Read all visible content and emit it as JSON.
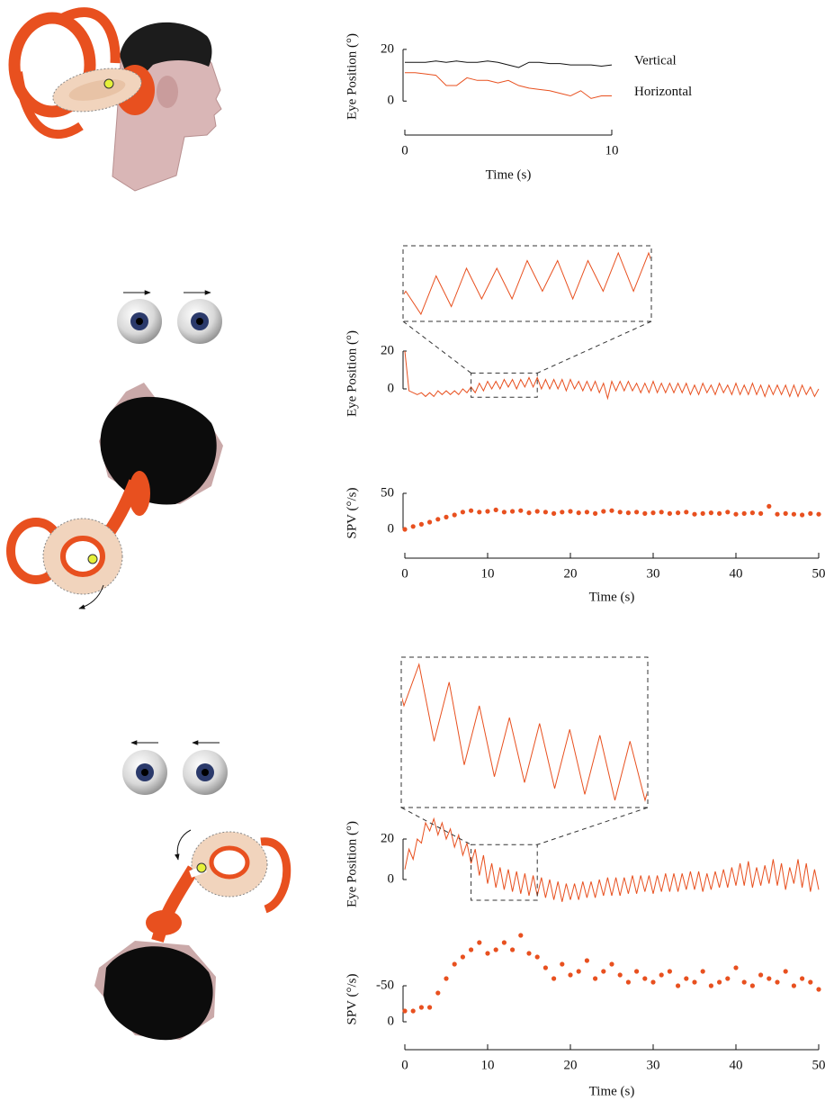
{
  "chart_data": [
    {
      "type": "line",
      "y_label": "Eye Position (°)",
      "x_label": "Time (s)",
      "xlim": [
        0,
        10
      ],
      "xticks": [
        0,
        10
      ],
      "ylim": [
        -2,
        21
      ],
      "yticks": [
        0,
        20
      ],
      "x": [
        0,
        0.5,
        1,
        1.5,
        2,
        2.5,
        3,
        3.5,
        4,
        4.5,
        5,
        5.5,
        6,
        6.5,
        7,
        7.5,
        8,
        8.5,
        9,
        9.5,
        10
      ],
      "series": [
        {
          "name": "Vertical",
          "color": "#111111",
          "values": [
            15,
            15,
            15,
            15.5,
            15,
            15.5,
            15,
            15,
            15.5,
            15,
            14,
            13,
            15,
            15,
            14.5,
            14.5,
            14,
            14,
            14,
            13.5,
            14
          ]
        },
        {
          "name": "Horizontal",
          "color": "#e8501f",
          "values": [
            11,
            11,
            10.5,
            10,
            6,
            6,
            9,
            8,
            8,
            7,
            8,
            6,
            5,
            4.5,
            4,
            3,
            2,
            4,
            1,
            2,
            2
          ]
        }
      ]
    },
    {
      "type": "line",
      "y_label": "Eye Position (°)",
      "xlim": [
        0,
        50
      ],
      "ylim": [
        -6,
        22
      ],
      "yticks": [
        0,
        20
      ],
      "zoom_xlim": [
        8,
        16
      ],
      "x": [
        0,
        0.5,
        1,
        1.5,
        2,
        2.5,
        3,
        3.5,
        4,
        4.5,
        5,
        5.5,
        6,
        6.5,
        7,
        7.5,
        8,
        8.5,
        9,
        9.5,
        10,
        10.5,
        11,
        11.5,
        12,
        12.5,
        13,
        13.5,
        14,
        14.5,
        15,
        15.5,
        16,
        16.5,
        17,
        17.5,
        18,
        18.5,
        19,
        19.5,
        20,
        20.5,
        21,
        21.5,
        22,
        22.5,
        23,
        23.5,
        24,
        24.5,
        25,
        25.5,
        26,
        26.5,
        27,
        27.5,
        28,
        28.5,
        29,
        29.5,
        30,
        30.5,
        31,
        31.5,
        32,
        32.5,
        33,
        33.5,
        34,
        34.5,
        35,
        35.5,
        36,
        36.5,
        37,
        37.5,
        38,
        38.5,
        39,
        39.5,
        40,
        40.5,
        41,
        41.5,
        42,
        42.5,
        43,
        43.5,
        44,
        44.5,
        45,
        45.5,
        46,
        46.5,
        47,
        47.5,
        48,
        48.5,
        49,
        49.5,
        50
      ],
      "series": [
        {
          "color": "#e8501f",
          "values": [
            20,
            -1,
            -2,
            -3,
            -2,
            -4,
            -2,
            -4,
            -1,
            -3,
            -1,
            -3,
            -1,
            -3,
            0,
            -2,
            1,
            -2,
            3,
            -1,
            4,
            0,
            4,
            0,
            5,
            1,
            5,
            0,
            5,
            1,
            6,
            1,
            6,
            0,
            5,
            0,
            5,
            0,
            5,
            -1,
            5,
            0,
            4,
            -1,
            4,
            -1,
            4,
            -2,
            3,
            -5,
            4,
            -1,
            4,
            -1,
            4,
            -1,
            3,
            -2,
            3,
            -2,
            4,
            -2,
            3,
            -2,
            3,
            -2,
            3,
            -2,
            3,
            -3,
            2,
            -3,
            3,
            -2,
            2,
            -3,
            3,
            -2,
            2,
            -3,
            3,
            -3,
            2,
            -3,
            3,
            -3,
            2,
            -4,
            2,
            -3,
            2,
            -3,
            2,
            -4,
            2,
            -4,
            2,
            -3,
            1,
            -4,
            0
          ]
        }
      ]
    },
    {
      "type": "scatter",
      "y_label": "SPV (°/s)",
      "x_label": "Time (s)",
      "xlim": [
        0,
        50
      ],
      "xticks": [
        0,
        10,
        20,
        30,
        40,
        50
      ],
      "ylim": [
        -3,
        50
      ],
      "yticks": [
        0,
        50
      ],
      "color": "#e8501f",
      "x": [
        0,
        1,
        2,
        3,
        4,
        5,
        6,
        7,
        8,
        9,
        10,
        11,
        12,
        13,
        14,
        15,
        16,
        17,
        18,
        19,
        20,
        21,
        22,
        23,
        24,
        25,
        26,
        27,
        28,
        29,
        30,
        31,
        32,
        33,
        34,
        35,
        36,
        37,
        38,
        39,
        40,
        41,
        42,
        43,
        44,
        45,
        46,
        47,
        48,
        49,
        50
      ],
      "values": [
        0,
        4,
        7,
        10,
        14,
        17,
        20,
        24,
        26,
        24,
        25,
        27,
        24,
        25,
        26,
        23,
        25,
        24,
        22,
        24,
        25,
        23,
        24,
        22,
        25,
        26,
        24,
        23,
        24,
        22,
        23,
        24,
        22,
        23,
        24,
        21,
        22,
        23,
        22,
        24,
        21,
        22,
        23,
        22,
        32,
        21,
        22,
        21,
        20,
        22,
        21
      ]
    },
    {
      "type": "line",
      "y_label": "Eye Position (°)",
      "xlim": [
        0,
        50
      ],
      "ylim": [
        -12,
        34
      ],
      "yticks": [
        0,
        20
      ],
      "zoom_xlim": [
        8,
        16
      ],
      "x": [
        0,
        0.5,
        1,
        1.5,
        2,
        2.5,
        3,
        3.5,
        4,
        4.5,
        5,
        5.5,
        6,
        6.5,
        7,
        7.5,
        8,
        8.5,
        9,
        9.5,
        10,
        10.5,
        11,
        11.5,
        12,
        12.5,
        13,
        13.5,
        14,
        14.5,
        15,
        15.5,
        16,
        16.5,
        17,
        17.5,
        18,
        18.5,
        19,
        19.5,
        20,
        20.5,
        21,
        21.5,
        22,
        22.5,
        23,
        23.5,
        24,
        24.5,
        25,
        25.5,
        26,
        26.5,
        27,
        27.5,
        28,
        28.5,
        29,
        29.5,
        30,
        30.5,
        31,
        31.5,
        32,
        32.5,
        33,
        33.5,
        34,
        34.5,
        35,
        35.5,
        36,
        36.5,
        37,
        37.5,
        38,
        38.5,
        39,
        39.5,
        40,
        40.5,
        41,
        41.5,
        42,
        42.5,
        43,
        43.5,
        44,
        44.5,
        45,
        45.5,
        46,
        46.5,
        47,
        47.5,
        48,
        48.5,
        49,
        49.5,
        50
      ],
      "series": [
        {
          "color": "#e8501f",
          "values": [
            5,
            15,
            10,
            20,
            18,
            28,
            24,
            30,
            22,
            28,
            20,
            25,
            16,
            22,
            12,
            18,
            8,
            15,
            2,
            12,
            -2,
            8,
            -4,
            6,
            -5,
            5,
            -6,
            4,
            -7,
            3,
            -8,
            2,
            -8,
            1,
            -9,
            0,
            -10,
            -1,
            -11,
            -2,
            -10,
            -2,
            -10,
            -1,
            -9,
            -1,
            -9,
            0,
            -8,
            1,
            -8,
            1,
            -8,
            1,
            -7,
            2,
            -7,
            2,
            -6,
            2,
            -7,
            2,
            -6,
            3,
            -6,
            3,
            -6,
            3,
            -5,
            4,
            -5,
            4,
            -6,
            3,
            -5,
            4,
            -4,
            5,
            -4,
            6,
            -3,
            8,
            -3,
            9,
            -4,
            6,
            -3,
            7,
            -2,
            10,
            -3,
            8,
            -5,
            6,
            -2,
            10,
            -4,
            8,
            -6,
            5,
            -5
          ]
        }
      ]
    },
    {
      "type": "scatter",
      "y_label": "SPV (°/s)",
      "x_label": "Time (s)",
      "xlim": [
        0,
        50
      ],
      "xticks": [
        0,
        10,
        20,
        30,
        40,
        50
      ],
      "ylim": [
        5,
        -135
      ],
      "yticks": [
        0,
        -50
      ],
      "color": "#e8501f",
      "x": [
        0,
        1,
        2,
        3,
        4,
        5,
        6,
        7,
        8,
        9,
        10,
        11,
        12,
        13,
        14,
        15,
        16,
        17,
        18,
        19,
        20,
        21,
        22,
        23,
        24,
        25,
        26,
        27,
        28,
        29,
        30,
        31,
        32,
        33,
        34,
        35,
        36,
        37,
        38,
        39,
        40,
        41,
        42,
        43,
        44,
        45,
        46,
        47,
        48,
        49,
        50
      ],
      "values": [
        -15,
        -15,
        -20,
        -20,
        -40,
        -60,
        -80,
        -90,
        -100,
        -110,
        -95,
        -100,
        -110,
        -100,
        -120,
        -95,
        -90,
        -75,
        -60,
        -80,
        -65,
        -70,
        -85,
        -60,
        -70,
        -80,
        -65,
        -55,
        -70,
        -60,
        -55,
        -65,
        -70,
        -50,
        -60,
        -55,
        -70,
        -50,
        -55,
        -60,
        -75,
        -55,
        -50,
        -65,
        -60,
        -55,
        -70,
        -50,
        -60,
        -55,
        -45
      ]
    }
  ]
}
